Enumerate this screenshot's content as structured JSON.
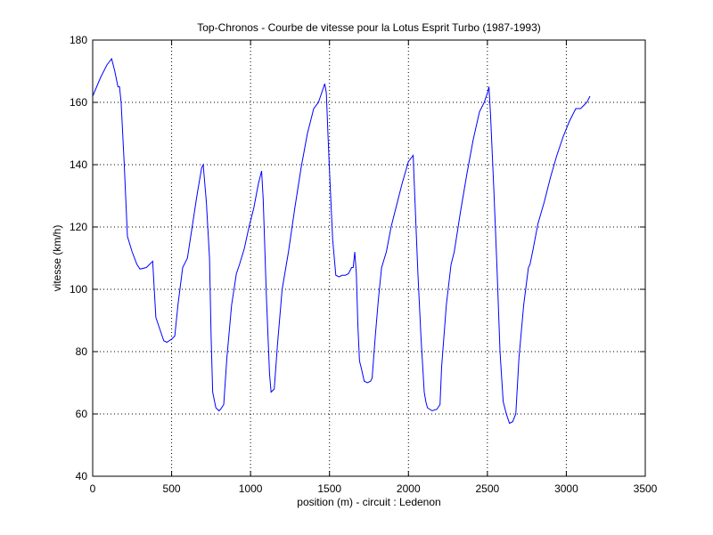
{
  "chart_data": {
    "type": "line",
    "title": "Top-Chronos - Courbe de vitesse pour la Lotus Esprit Turbo (1987-1993)",
    "xlabel": "position (m) - circuit : Ledenon",
    "ylabel": "vitesse (km/h)",
    "xlim": [
      0,
      3500
    ],
    "ylim": [
      40,
      180
    ],
    "xticks": [
      0,
      500,
      1000,
      1500,
      2000,
      2500,
      3000,
      3500
    ],
    "yticks": [
      40,
      60,
      80,
      100,
      120,
      140,
      160,
      180
    ],
    "grid": true,
    "line_color": "#0000ff",
    "series": [
      {
        "x": [
          0,
          50,
          90,
          120,
          140,
          160,
          170,
          180,
          200,
          220,
          250,
          280,
          300,
          340,
          360,
          380,
          400,
          420,
          440,
          450,
          470,
          500,
          520,
          540,
          570,
          600,
          630,
          660,
          690,
          700,
          720,
          740,
          750,
          760,
          780,
          800,
          810,
          830,
          850,
          880,
          910,
          930,
          960,
          990,
          1020,
          1050,
          1070,
          1080,
          1100,
          1120,
          1130,
          1150,
          1170,
          1200,
          1240,
          1280,
          1320,
          1360,
          1400,
          1430,
          1450,
          1470,
          1480,
          1490,
          1500,
          1520,
          1540,
          1560,
          1580,
          1600,
          1620,
          1640,
          1650,
          1660,
          1670,
          1680,
          1690,
          1700,
          1720,
          1740,
          1760,
          1770,
          1790,
          1810,
          1830,
          1860,
          1890,
          1920,
          1960,
          2000,
          2030,
          2040,
          2060,
          2080,
          2100,
          2110,
          2120,
          2150,
          2180,
          2200,
          2210,
          2240,
          2270,
          2290,
          2330,
          2370,
          2410,
          2450,
          2480,
          2500,
          2510,
          2520,
          2540,
          2560,
          2580,
          2600,
          2620,
          2640,
          2660,
          2680,
          2700,
          2730,
          2760,
          2770,
          2790,
          2820,
          2860,
          2900,
          2940,
          2980,
          3020,
          3060,
          3090,
          3110,
          3130,
          3150
        ],
        "y": [
          162,
          168,
          172,
          174,
          170,
          165,
          165,
          160,
          140,
          117,
          112,
          108,
          106.5,
          107,
          108,
          109,
          91,
          88,
          85,
          83.5,
          83,
          84,
          85,
          95,
          107,
          110,
          120,
          130,
          139,
          140,
          128,
          110,
          85,
          67,
          62,
          61,
          61.5,
          63,
          78,
          95,
          105,
          108,
          113,
          120,
          126,
          134,
          138,
          129,
          98,
          73,
          67,
          68,
          82,
          100,
          112,
          126,
          139,
          150,
          158,
          160,
          163,
          166,
          163,
          150,
          138,
          116,
          104.5,
          104,
          104.5,
          104.5,
          105,
          107,
          107,
          112,
          105,
          88,
          77,
          75,
          70.5,
          70,
          70.5,
          71.5,
          85,
          97,
          107,
          112,
          120,
          126,
          134,
          141,
          143,
          130,
          105,
          84,
          67,
          64,
          62,
          61,
          61.5,
          63,
          75,
          95,
          108,
          112,
          125,
          137,
          148,
          157,
          160,
          163,
          165,
          156,
          133,
          108,
          80,
          64,
          60,
          57,
          57.5,
          60,
          78,
          95,
          107,
          108,
          113,
          121,
          128,
          136,
          143,
          149,
          154,
          158,
          158,
          159,
          160,
          162
        ]
      }
    ]
  }
}
